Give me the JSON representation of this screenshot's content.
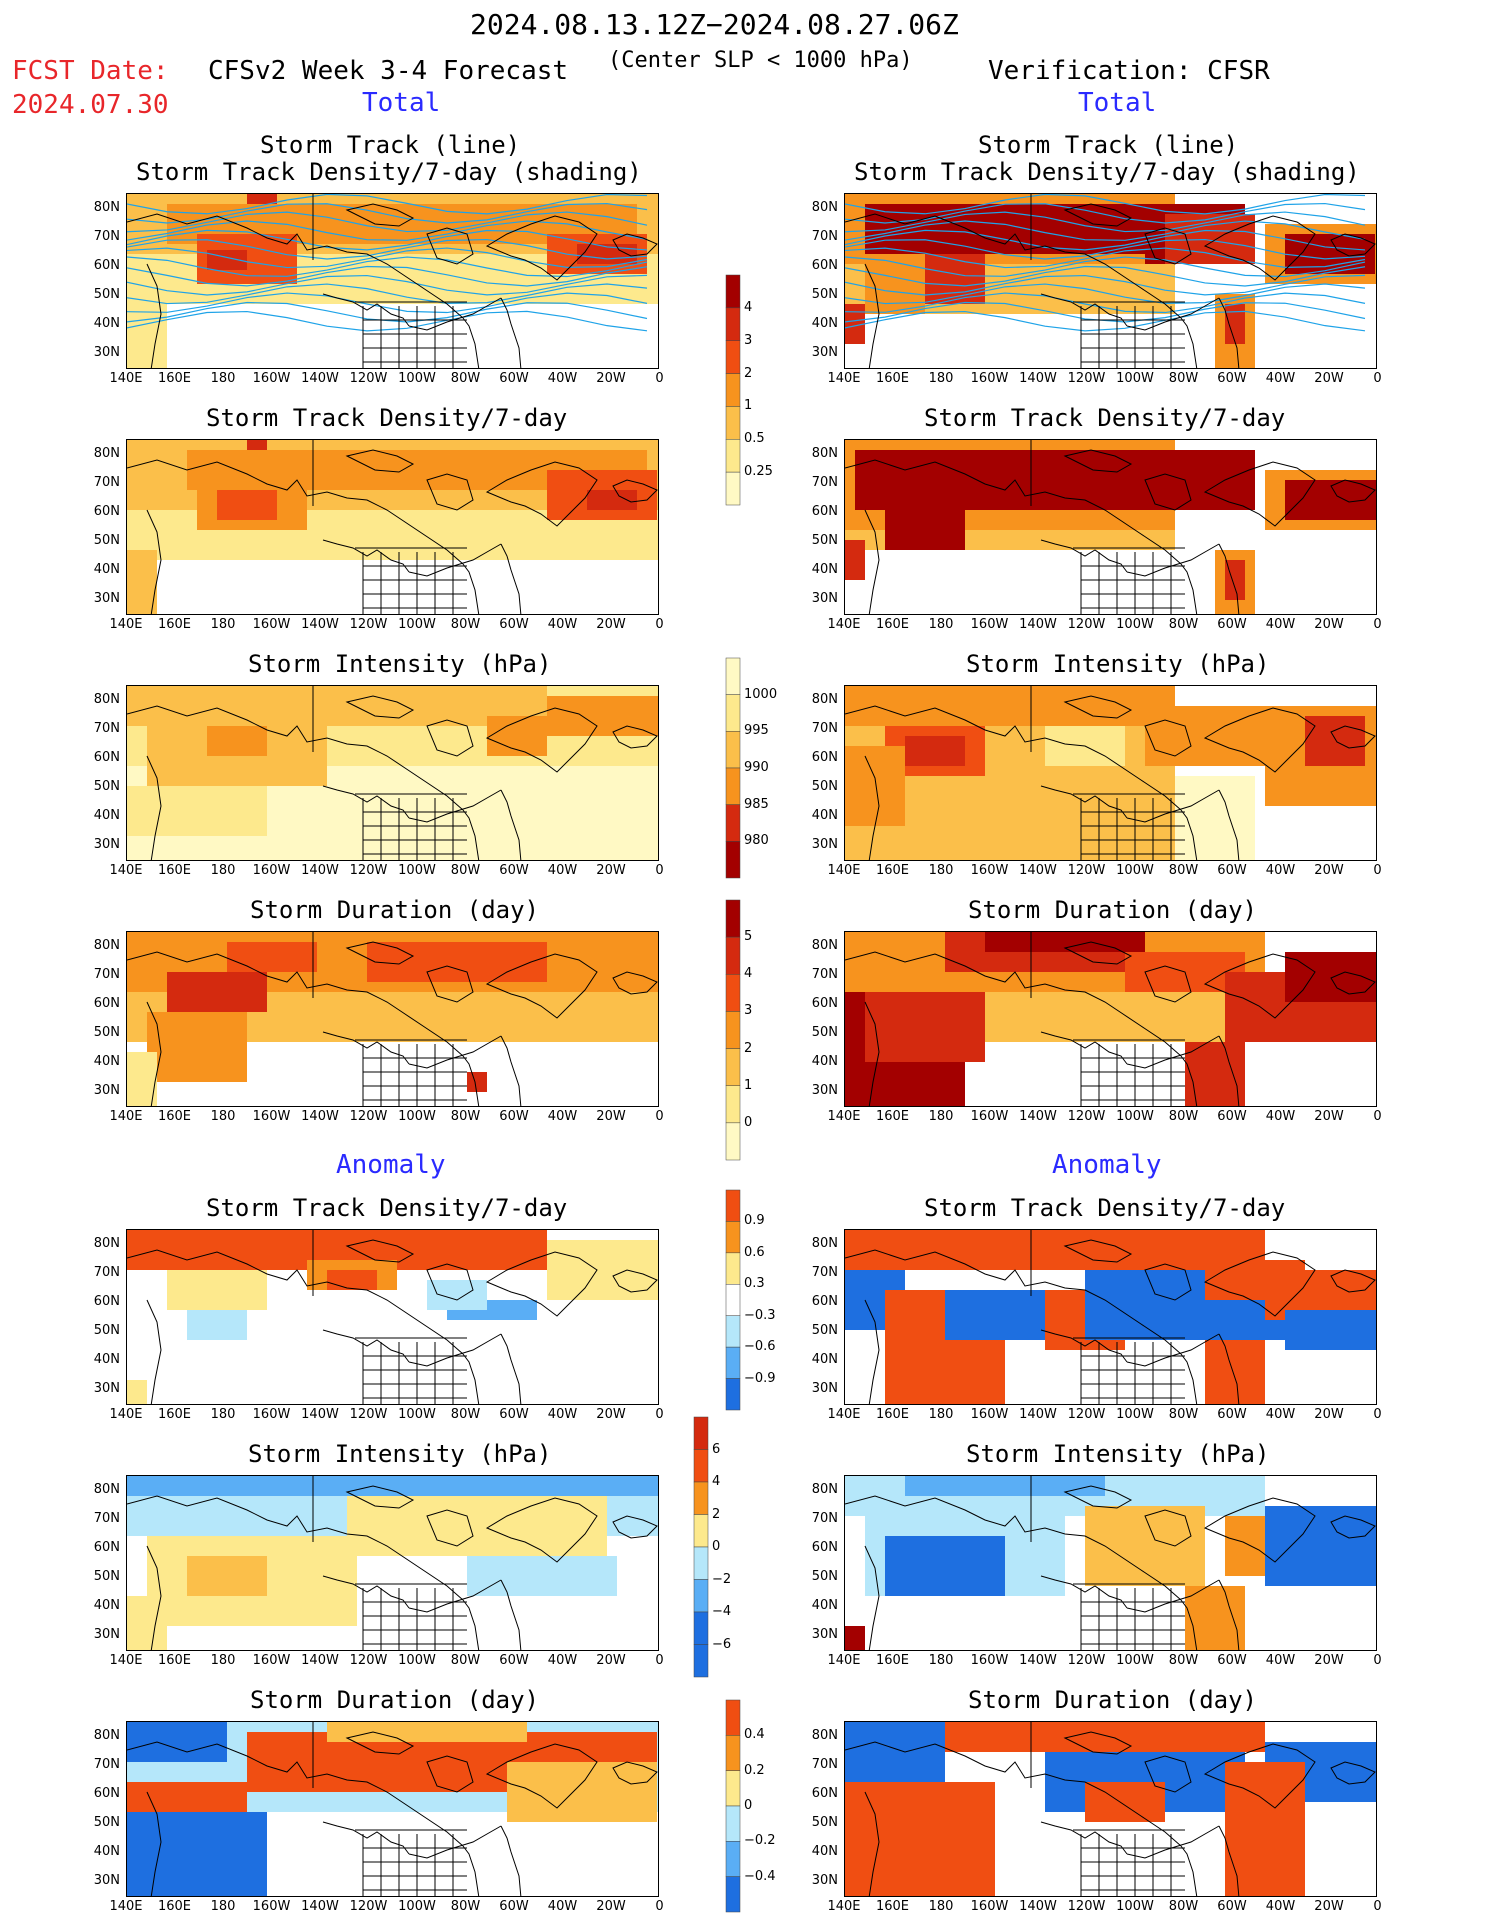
{
  "header": {
    "period": "2024.08.13.12Z−2024.08.27.06Z",
    "fcst_label": "FCST Date:",
    "fcst_date": "2024.07.30",
    "model": "CFSv2 Week 3-4 Forecast",
    "condition": "(Center SLP < 1000 hPa)",
    "verification": "Verification: CFSR",
    "left_total": "Total",
    "right_total": "Total",
    "left_anomaly": "Anomaly",
    "right_anomaly": "Anomaly"
  },
  "panel_titles": {
    "track_line": "Storm Track (line)",
    "track_shading": "Storm Track Density/7-day (shading)",
    "density": "Storm Track Density/7-day",
    "intensity": "Storm Intensity (hPa)",
    "duration": "Storm Duration (day)"
  },
  "lat_labels": [
    "80N",
    "70N",
    "60N",
    "50N",
    "40N",
    "30N"
  ],
  "lon_labels": [
    "140E",
    "160E",
    "180",
    "160W",
    "140W",
    "120W",
    "100W",
    "80W",
    "60W",
    "40W",
    "20W",
    "0"
  ],
  "colorbars": {
    "density": [
      "4",
      "3",
      "2",
      "1",
      "0.5",
      "0.25"
    ],
    "intensity": [
      "1000",
      "995",
      "990",
      "985",
      "980"
    ],
    "duration": [
      "5",
      "4",
      "3",
      "2",
      "1",
      "0"
    ],
    "density_anom": [
      "0.9",
      "0.6",
      "0.3",
      "−0.3",
      "−0.6",
      "−0.9"
    ],
    "intensity_anom": [
      "6",
      "4",
      "2",
      "0",
      "−2",
      "−4",
      "−6"
    ],
    "duration_anom": [
      "0.4",
      "0.2",
      "0",
      "−0.2",
      "−0.4"
    ]
  },
  "colors": {
    "dark_red": "#a30000",
    "red": "#d42a0f",
    "orange_red": "#f04e12",
    "orange": "#f7931e",
    "light_orange": "#fbbf4a",
    "yellow": "#fde98d",
    "pale_yellow": "#fff9c4",
    "light_blue": "#b5e7fa",
    "mid_blue": "#5aaef5",
    "blue": "#1e6fe0",
    "track_line": "#1fa3e8"
  }
}
